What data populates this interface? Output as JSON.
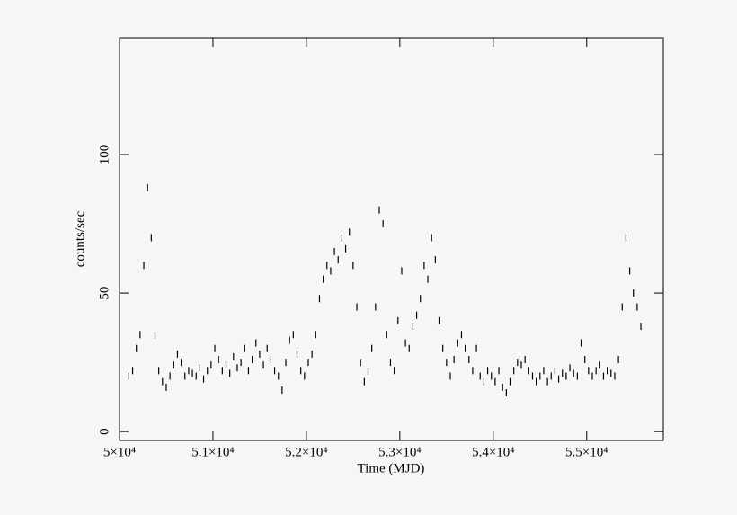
{
  "chart_data": {
    "type": "scatter",
    "xlabel": "Time (MJD)",
    "ylabel": "counts/sec",
    "xlim": [
      50000,
      55820
    ],
    "ylim": [
      -3.2,
      142.2
    ],
    "xticks": [
      {
        "value": 50000,
        "label": "5×10⁴"
      },
      {
        "value": 51000,
        "label": "5.1×10⁴"
      },
      {
        "value": 52000,
        "label": "5.2×10⁴"
      },
      {
        "value": 53000,
        "label": "5.3×10⁴"
      },
      {
        "value": 54000,
        "label": "5.4×10⁴"
      },
      {
        "value": 55000,
        "label": "5.5×10⁴"
      }
    ],
    "yticks": [
      0,
      50,
      100
    ],
    "grid": false,
    "x": [
      50100,
      50140,
      50180,
      50220,
      50260,
      50300,
      50340,
      50380,
      50420,
      50460,
      50500,
      50540,
      50580,
      50620,
      50660,
      50700,
      50740,
      50780,
      50820,
      50860,
      50900,
      50940,
      50980,
      51020,
      51060,
      51100,
      51140,
      51180,
      51220,
      51260,
      51300,
      51340,
      51380,
      51420,
      51460,
      51500,
      51540,
      51580,
      51620,
      51660,
      51700,
      51740,
      51780,
      51820,
      51860,
      51900,
      51940,
      51980,
      52020,
      52060,
      52100,
      52140,
      52180,
      52220,
      52260,
      52300,
      52340,
      52380,
      52420,
      52460,
      52500,
      52540,
      52580,
      52620,
      52660,
      52700,
      52740,
      52780,
      52820,
      52860,
      52900,
      52940,
      52980,
      53020,
      53060,
      53100,
      53140,
      53180,
      53220,
      53260,
      53300,
      53340,
      53380,
      53420,
      53460,
      53500,
      53540,
      53580,
      53620,
      53660,
      53700,
      53740,
      53780,
      53820,
      53860,
      53900,
      53940,
      53980,
      54020,
      54060,
      54100,
      54140,
      54180,
      54220,
      54260,
      54300,
      54340,
      54380,
      54420,
      54460,
      54500,
      54540,
      54580,
      54620,
      54660,
      54700,
      54740,
      54780,
      54820,
      54860,
      54900,
      54940,
      54980,
      55020,
      55060,
      55100,
      55140,
      55180,
      55220,
      55260,
      55300,
      55340,
      55380,
      55420,
      55460,
      55500,
      55540,
      55580
    ],
    "series": [
      {
        "name": "counts",
        "color": "#000000",
        "values": [
          20,
          22,
          30,
          35,
          60,
          88,
          70,
          35,
          22,
          18,
          16,
          20,
          24,
          28,
          25,
          20,
          22,
          21,
          20,
          23,
          19,
          22,
          24,
          30,
          26,
          22,
          24,
          21,
          27,
          23,
          25,
          30,
          22,
          26,
          32,
          28,
          24,
          30,
          26,
          22,
          20,
          15,
          25,
          33,
          35,
          28,
          22,
          20,
          25,
          28,
          35,
          48,
          55,
          60,
          58,
          65,
          62,
          70,
          66,
          72,
          60,
          45,
          25,
          18,
          22,
          30,
          45,
          80,
          75,
          35,
          25,
          22,
          40,
          58,
          32,
          30,
          38,
          42,
          48,
          60,
          55,
          70,
          62,
          40,
          30,
          25,
          20,
          26,
          32,
          35,
          30,
          26,
          22,
          30,
          20,
          18,
          22,
          20,
          18,
          22,
          16,
          14,
          18,
          22,
          25,
          24,
          26,
          22,
          20,
          18,
          20,
          22,
          18,
          20,
          22,
          19,
          21,
          20,
          23,
          21,
          20,
          32,
          26,
          22,
          20,
          22,
          24,
          20,
          22,
          21,
          20,
          26,
          45,
          70,
          58,
          50,
          45,
          38
        ]
      }
    ]
  }
}
